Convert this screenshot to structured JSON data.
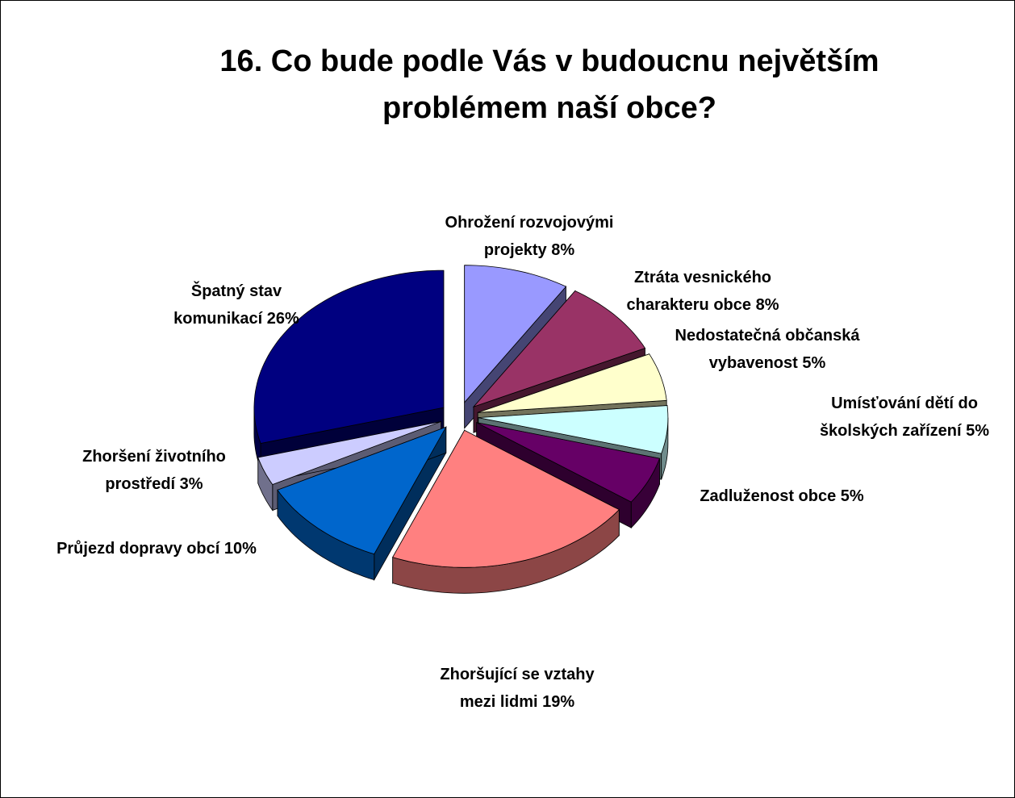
{
  "chart_data": {
    "type": "pie3d",
    "title": "16. Co bude podle Vás v budoucnu největším problémem naší obce?",
    "categories": [
      "Ohrožení rozvojovými projekty",
      "Ztráta vesnického charakteru obce",
      "Nedostatečná občanská vybavenost",
      "Umísťování dětí do školských zařízení",
      "Zadluženost obce",
      "Zhoršující se vztahy mezi lidmi",
      "Průjezd dopravy obcí",
      "Zhoršení životního prostředí",
      "Špatný stav komunikací"
    ],
    "values": [
      8,
      8,
      5,
      5,
      5,
      19,
      10,
      3,
      26
    ],
    "value_labels": [
      "8%",
      "8%",
      "5%",
      "5%",
      "5%",
      "19%",
      "10%",
      "3%",
      "26%"
    ],
    "colors": [
      "#9999ff",
      "#993366",
      "#ffffcc",
      "#ccffff",
      "#660066",
      "#ff8080",
      "#0066cc",
      "#ccccff",
      "#000080"
    ]
  }
}
